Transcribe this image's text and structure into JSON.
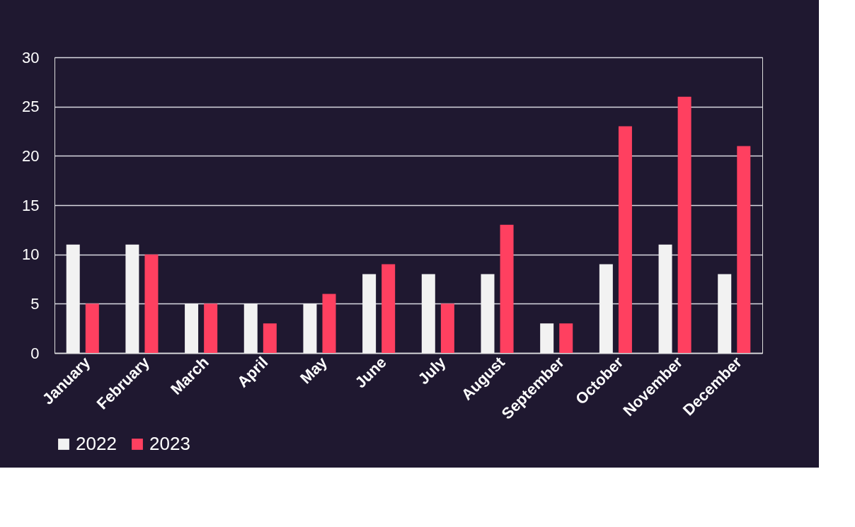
{
  "chart_data": {
    "type": "bar",
    "categories": [
      "January",
      "February",
      "March",
      "April",
      "May",
      "June",
      "July",
      "August",
      "September",
      "October",
      "November",
      "December"
    ],
    "series": [
      {
        "name": "2022",
        "color": "#f2f2f2",
        "values": [
          11,
          11,
          5,
          5,
          5,
          8,
          8,
          8,
          3,
          9,
          11,
          8
        ]
      },
      {
        "name": "2023",
        "color": "#ff4060",
        "values": [
          5,
          10,
          5,
          3,
          6,
          9,
          5,
          13,
          3,
          23,
          26,
          21
        ]
      }
    ],
    "ylim": [
      0,
      30
    ],
    "yticks": [
      0,
      5,
      10,
      15,
      20,
      25,
      30
    ],
    "grid": "y",
    "legend": "bottom"
  }
}
